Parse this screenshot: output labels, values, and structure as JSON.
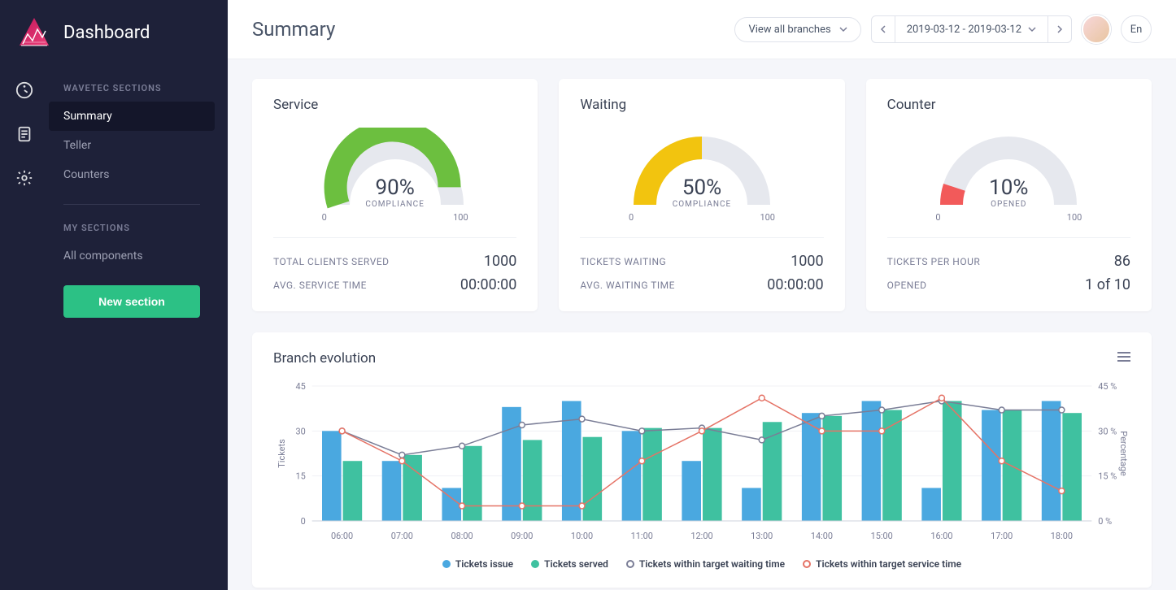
{
  "sidebar": {
    "title": "Dashboard",
    "section1_label": "WAVETEC SECTIONS",
    "items1": [
      {
        "label": "Summary",
        "active": true
      },
      {
        "label": "Teller",
        "active": false
      },
      {
        "label": "Counters",
        "active": false
      }
    ],
    "section2_label": "MY SECTIONS",
    "items2": [
      {
        "label": "All components",
        "active": false
      }
    ],
    "new_section_label": "New section"
  },
  "topbar": {
    "page_title": "Summary",
    "branch_label": "View all branches",
    "date_range": "2019-03-12 - 2019-03-12",
    "lang": "En"
  },
  "gauges": [
    {
      "title": "Service",
      "percent": 90,
      "label": "COMPLIANCE",
      "scale_min": "0",
      "scale_max": "100",
      "color": "#6cbf3f",
      "track": "#e6e8ee",
      "stats": [
        {
          "label": "TOTAL CLIENTS SERVED",
          "value": "1000"
        },
        {
          "label": "AVG. SERVICE TIME",
          "value": "00:00:00"
        }
      ]
    },
    {
      "title": "Waiting",
      "percent": 50,
      "label": "COMPLIANCE",
      "scale_min": "0",
      "scale_max": "100",
      "color": "#f2c40f",
      "track": "#e6e8ee",
      "stats": [
        {
          "label": "TICKETS WAITING",
          "value": "1000"
        },
        {
          "label": "AVG. WAITING TIME",
          "value": "00:00:00"
        }
      ]
    },
    {
      "title": "Counter",
      "percent": 10,
      "label": "OPENED",
      "scale_min": "0",
      "scale_max": "100",
      "color": "#f25a5a",
      "track": "#e6e8ee",
      "stats": [
        {
          "label": "TICKETS PER HOUR",
          "value": "86"
        },
        {
          "label": "OPENED",
          "value": "1 of 10"
        }
      ]
    }
  ],
  "chart": {
    "title": "Branch evolution",
    "y_left_label": "Tickets",
    "y_right_label": "Percentage",
    "y_left_ticks": [
      0,
      15,
      30,
      45
    ],
    "y_right_ticks": [
      "0 %",
      "15 %",
      "30 %",
      "45 %"
    ],
    "ylim": [
      0,
      45
    ],
    "categories": [
      "06:00",
      "07:00",
      "08:00",
      "09:00",
      "10:00",
      "11:00",
      "12:00",
      "13:00",
      "14:00",
      "15:00",
      "16:00",
      "17:00",
      "18:00"
    ],
    "series_bars": [
      {
        "name": "Tickets issue",
        "color": "#4aa8e0",
        "values": [
          30,
          20,
          11,
          38,
          40,
          30,
          20,
          11,
          36,
          40,
          11,
          37,
          40
        ]
      },
      {
        "name": "Tickets served",
        "color": "#3fc1a0",
        "values": [
          20,
          22,
          25,
          27,
          28,
          31,
          31,
          33,
          35,
          37,
          40,
          37,
          36
        ]
      }
    ],
    "series_lines": [
      {
        "name": "Tickets within target waiting time",
        "color": "#7a7d96",
        "values": [
          30,
          22,
          25,
          32,
          34,
          30,
          31,
          27,
          35,
          37,
          40,
          37,
          37
        ]
      },
      {
        "name": "Tickets within target service time",
        "color": "#e57366",
        "values": [
          30,
          20,
          5,
          5,
          5,
          20,
          30,
          41,
          30,
          30,
          41,
          20,
          10
        ]
      }
    ],
    "bar_width": 0.32,
    "background": "#ffffff",
    "grid_color": "#f0f1f5",
    "axis_font_size": 11,
    "legend_font_size": 12
  },
  "colors": {
    "sidebar_bg": "#1e2139",
    "accent_green": "#2cc185",
    "logo_gradient": [
      "#c2185b",
      "#ec407a"
    ]
  }
}
